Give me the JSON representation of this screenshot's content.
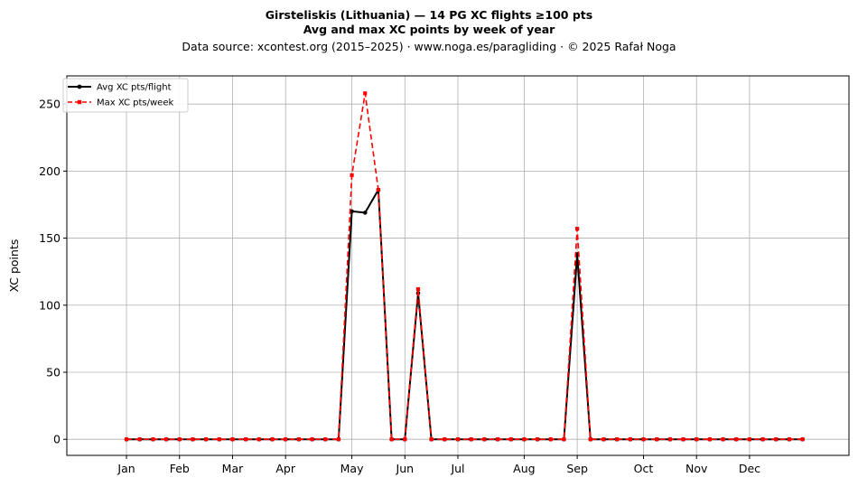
{
  "chart_data": {
    "type": "line",
    "title": "Girsteliskis (Lithuania)  —  14 PG XC flights ≥100 pts",
    "subtitle": "Avg and max XC points by week of year",
    "source": "Data source: xcontest.org (2015–2025)  ·  www.noga.es/paragliding  ·  © 2025 Rafał Noga",
    "xlabel": "",
    "ylabel": "XC points",
    "ylim": [
      -12,
      271
    ],
    "xlim": [
      -3.5,
      55.5
    ],
    "yticks": [
      0,
      50,
      100,
      150,
      200,
      250
    ],
    "grid": true,
    "legend_position": "top-left",
    "x_tick_labels": [
      "Jan",
      "Feb",
      "Mar",
      "Apr",
      "May",
      "Jun",
      "Jul",
      "Aug",
      "Sep",
      "Oct",
      "Nov",
      "Dec"
    ],
    "x_tick_weeks": [
      1,
      5,
      9,
      13,
      18,
      22,
      26,
      31,
      35,
      40,
      44,
      48
    ],
    "weeks": [
      1,
      2,
      3,
      4,
      5,
      6,
      7,
      8,
      9,
      10,
      11,
      12,
      13,
      14,
      15,
      16,
      17,
      18,
      19,
      20,
      21,
      22,
      23,
      24,
      25,
      26,
      27,
      28,
      29,
      30,
      31,
      32,
      33,
      34,
      35,
      36,
      37,
      38,
      39,
      40,
      41,
      42,
      43,
      44,
      45,
      46,
      47,
      48,
      49,
      50,
      51,
      52
    ],
    "series": [
      {
        "name": "Avg XC pts/flight",
        "color": "#000000",
        "style": "solid",
        "marker": "circle",
        "values": [
          0,
          0,
          0,
          0,
          0,
          0,
          0,
          0,
          0,
          0,
          0,
          0,
          0,
          0,
          0,
          0,
          0,
          170,
          169,
          186,
          0,
          0,
          109,
          0,
          0,
          0,
          0,
          0,
          0,
          0,
          0,
          0,
          0,
          0,
          138,
          0,
          0,
          0,
          0,
          0,
          0,
          0,
          0,
          0,
          0,
          0,
          0,
          0,
          0,
          0,
          0,
          0
        ]
      },
      {
        "name": "Max XC pts/week",
        "color": "#ff0000",
        "style": "dashed",
        "marker": "square",
        "values": [
          0,
          0,
          0,
          0,
          0,
          0,
          0,
          0,
          0,
          0,
          0,
          0,
          0,
          0,
          0,
          0,
          0,
          197,
          258,
          186,
          0,
          0,
          112,
          0,
          0,
          0,
          0,
          0,
          0,
          0,
          0,
          0,
          0,
          0,
          157,
          0,
          0,
          0,
          0,
          0,
          0,
          0,
          0,
          0,
          0,
          0,
          0,
          0,
          0,
          0,
          0,
          0
        ]
      }
    ]
  }
}
